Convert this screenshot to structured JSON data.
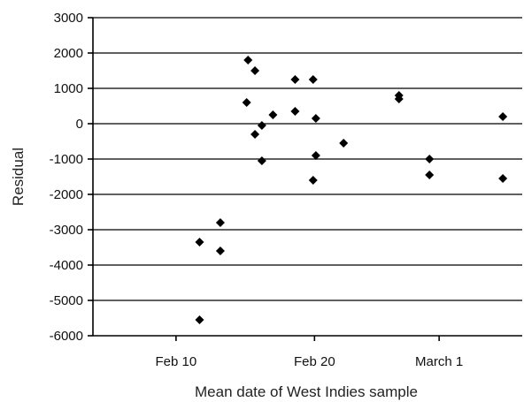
{
  "chart_data": {
    "type": "scatter",
    "title": "",
    "xlabel": "Mean date of West Indies sample",
    "ylabel": "Residual",
    "ylim": [
      -6000,
      3000
    ],
    "y_ticks": [
      "3000",
      "2000",
      "1000",
      "0",
      "-1000",
      "-2000",
      "-3000",
      "-4000",
      "-5000",
      "-6000"
    ],
    "x_ticks": [
      {
        "label": "Feb 10",
        "day": 10
      },
      {
        "label": "Feb 20",
        "day": 20
      },
      {
        "label": "March 1",
        "day": 29
      }
    ],
    "x_axis_unit": "day of February",
    "xlim": [
      4,
      35
    ],
    "grid": "horizontal",
    "marker": "diamond",
    "point_color": "#000000",
    "points": [
      {
        "x": 11.7,
        "y": -5550
      },
      {
        "x": 11.7,
        "y": -3350
      },
      {
        "x": 13.2,
        "y": -3600
      },
      {
        "x": 13.2,
        "y": -2800
      },
      {
        "x": 15.2,
        "y": 1800
      },
      {
        "x": 15.1,
        "y": 600
      },
      {
        "x": 15.7,
        "y": 1500
      },
      {
        "x": 15.7,
        "y": -300
      },
      {
        "x": 16.2,
        "y": -50
      },
      {
        "x": 16.2,
        "y": -1050
      },
      {
        "x": 17.0,
        "y": 250
      },
      {
        "x": 18.6,
        "y": 1250
      },
      {
        "x": 18.6,
        "y": 350
      },
      {
        "x": 19.9,
        "y": 1250
      },
      {
        "x": 20.1,
        "y": 150
      },
      {
        "x": 20.1,
        "y": -900
      },
      {
        "x": 19.9,
        "y": -1600
      },
      {
        "x": 22.1,
        "y": -550
      },
      {
        "x": 26.1,
        "y": 800
      },
      {
        "x": 26.1,
        "y": 700
      },
      {
        "x": 28.3,
        "y": -1000
      },
      {
        "x": 28.3,
        "y": -1450
      },
      {
        "x": 33.6,
        "y": 200
      },
      {
        "x": 33.6,
        "y": -1550
      }
    ]
  }
}
